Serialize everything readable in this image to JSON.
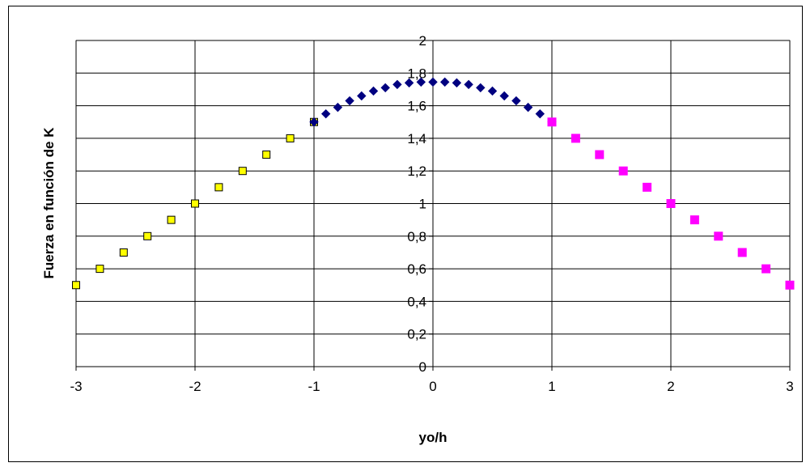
{
  "chart_data": {
    "type": "scatter",
    "title": "",
    "xlabel": "yo/h",
    "ylabel": "Fuerza en función de K",
    "xlim": [
      -3,
      3
    ],
    "ylim": [
      0,
      2
    ],
    "x_ticks": [
      -3,
      -2,
      -1,
      0,
      1,
      2,
      3
    ],
    "y_ticks": [
      0,
      0.2,
      0.4,
      0.6,
      0.8,
      1,
      1.2,
      1.4,
      1.6,
      1.8,
      2
    ],
    "x_tick_labels": [
      "-3",
      "-2",
      "-1",
      "0",
      "1",
      "2",
      "3"
    ],
    "y_tick_labels": [
      "0",
      "0,2",
      "0,4",
      "0,6",
      "0,8",
      "1",
      "1,2",
      "1,4",
      "1,6",
      "1,8",
      "2"
    ],
    "grid": true,
    "legend": "none",
    "series": [
      {
        "color": "#FFFF00",
        "marker": "square-outlined",
        "x": [
          -3,
          -2.8,
          -2.6,
          -2.4,
          -2.2,
          -2,
          -1.8,
          -1.6,
          -1.4,
          -1.2,
          -1
        ],
        "y": [
          0.5,
          0.6,
          0.7,
          0.8,
          0.9,
          1.0,
          1.1,
          1.2,
          1.3,
          1.4,
          1.5
        ]
      },
      {
        "color": "#000080",
        "marker": "diamond",
        "x": [
          -1,
          -0.9,
          -0.8,
          -0.7,
          -0.6,
          -0.5,
          -0.4,
          -0.3,
          -0.2,
          -0.1,
          0,
          0.1,
          0.2,
          0.3,
          0.4,
          0.5,
          0.6,
          0.7,
          0.8,
          0.9,
          1
        ],
        "y": [
          1.5,
          1.55,
          1.59,
          1.63,
          1.66,
          1.69,
          1.71,
          1.73,
          1.74,
          1.745,
          1.745,
          1.745,
          1.74,
          1.73,
          1.71,
          1.69,
          1.66,
          1.63,
          1.59,
          1.55,
          1.5
        ]
      },
      {
        "color": "#FF00FF",
        "marker": "square",
        "x": [
          1,
          1.2,
          1.4,
          1.6,
          1.8,
          2,
          2.2,
          2.4,
          2.6,
          2.8,
          3
        ],
        "y": [
          1.5,
          1.4,
          1.3,
          1.2,
          1.1,
          1.0,
          0.9,
          0.8,
          0.7,
          0.6,
          0.5
        ]
      }
    ]
  }
}
